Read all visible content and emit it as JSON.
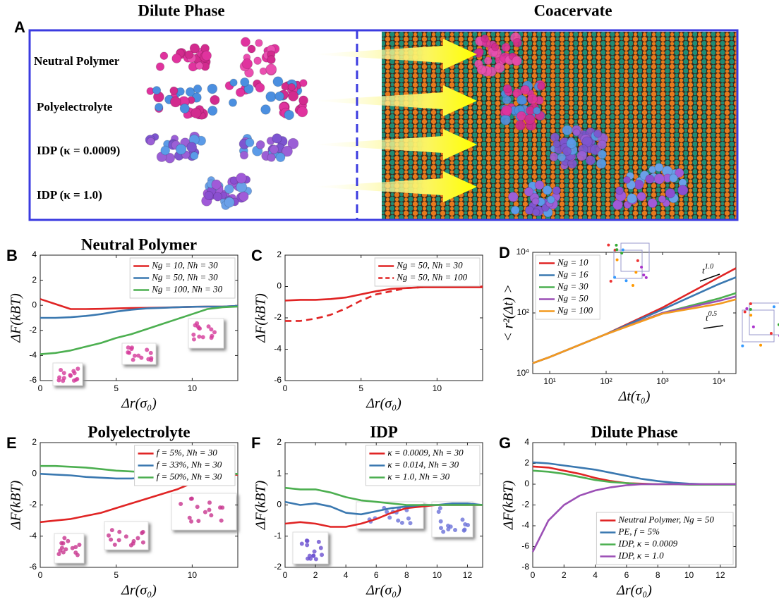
{
  "panel_a": {
    "label": "A",
    "dilute_title": "Dilute Phase",
    "coacervate_title": "Coacervate",
    "rows": [
      "Neutral Polymer",
      "Polyelectrolyte",
      "IDP (κ = 0.0009)",
      "IDP (κ = 1.0)"
    ]
  },
  "chart_data": [
    {
      "type": "line",
      "panel": "B",
      "title": "Neutral Polymer",
      "xlabel": "Δr(σ₀)",
      "ylabel": "ΔF(kBT)",
      "x": [
        0,
        1,
        2,
        3,
        4,
        5,
        6,
        7,
        8,
        9,
        10,
        11,
        12,
        13
      ],
      "xlim": [
        0,
        13
      ],
      "xticks": [
        0,
        5,
        10
      ],
      "ylim": [
        -6,
        4
      ],
      "yticks": [
        -6,
        -4,
        -2,
        0,
        2,
        4
      ],
      "legend": "upper right",
      "series": [
        {
          "name": "Ng = 10, Nh = 30",
          "color": "#e02424",
          "values": [
            0.5,
            0.1,
            -0.3,
            -0.3,
            -0.28,
            -0.25,
            -0.22,
            -0.2,
            -0.18,
            -0.15,
            -0.12,
            -0.1,
            -0.1,
            -0.05
          ]
        },
        {
          "name": "Ng = 50, Nh = 30",
          "color": "#3a78b0",
          "values": [
            -1.0,
            -1.0,
            -0.95,
            -0.85,
            -0.7,
            -0.5,
            -0.35,
            -0.25,
            -0.2,
            -0.15,
            -0.12,
            -0.1,
            -0.1,
            -0.05
          ]
        },
        {
          "name": "Ng = 100, Nh = 30",
          "color": "#4caf50",
          "values": [
            -3.9,
            -3.8,
            -3.6,
            -3.3,
            -3.0,
            -2.6,
            -2.3,
            -1.9,
            -1.5,
            -1.1,
            -0.7,
            -0.3,
            -0.15,
            -0.1
          ]
        }
      ]
    },
    {
      "type": "line",
      "panel": "C",
      "xlabel": "Δr(σ₀)",
      "ylabel": "ΔF(kBT)",
      "x": [
        0,
        1,
        2,
        3,
        4,
        5,
        6,
        7,
        8,
        9,
        10,
        11,
        12,
        13
      ],
      "xlim": [
        0,
        13
      ],
      "xticks": [
        0,
        5,
        10
      ],
      "ylim": [
        -6,
        2
      ],
      "yticks": [
        -6,
        -4,
        -2,
        0,
        2
      ],
      "legend": "upper right",
      "series": [
        {
          "name": "Ng = 50, Nh = 30",
          "color": "#e02424",
          "dash": false,
          "values": [
            -0.9,
            -0.85,
            -0.85,
            -0.8,
            -0.7,
            -0.5,
            -0.3,
            -0.15,
            -0.1,
            -0.05,
            -0.05,
            -0.05,
            -0.05,
            -0.05
          ]
        },
        {
          "name": "Ng = 50, Nh = 100",
          "color": "#e02424",
          "dash": true,
          "values": [
            -2.2,
            -2.2,
            -2.05,
            -1.8,
            -1.4,
            -0.9,
            -0.5,
            -0.3,
            -0.1,
            -0.05,
            0,
            0,
            0,
            0
          ]
        }
      ]
    },
    {
      "type": "line",
      "panel": "D",
      "xlabel": "Δt(τ₀)",
      "ylabel": "< r²(Δt) >",
      "xscale": "log",
      "yscale": "log",
      "x": [
        5,
        10,
        100,
        1000,
        10000,
        20000
      ],
      "xlim": [
        5,
        20000
      ],
      "xticks": [
        {
          "value": 10,
          "label": "10¹"
        },
        {
          "value": 100,
          "label": "10²"
        },
        {
          "value": 1000,
          "label": "10³"
        },
        {
          "value": 10000,
          "label": "10⁴"
        }
      ],
      "ylim": [
        1,
        10000
      ],
      "yticks": [
        {
          "value": 1,
          "label": "10⁰"
        },
        {
          "value": 100,
          "label": "10²"
        },
        {
          "value": 10000,
          "label": "10⁴"
        }
      ],
      "legend": "upper left",
      "annotations": [
        {
          "base": "t",
          "exponent": "1.0"
        },
        {
          "base": "t",
          "exponent": "0.5"
        }
      ],
      "series": [
        {
          "name": "Ng = 10",
          "color": "#e02424",
          "values": [
            2.2,
            3.5,
            20,
            150,
            1500,
            3000
          ]
        },
        {
          "name": "Ng = 16",
          "color": "#3a78b0",
          "values": [
            2.2,
            3.5,
            20,
            130,
            900,
            1500
          ]
        },
        {
          "name": "Ng = 30",
          "color": "#4caf50",
          "values": [
            2.2,
            3.5,
            20,
            100,
            300,
            450
          ]
        },
        {
          "name": "Ng = 50",
          "color": "#9b4fb5",
          "values": [
            2.2,
            3.5,
            20,
            100,
            250,
            350
          ]
        },
        {
          "name": "Ng = 100",
          "color": "#f39a1e",
          "values": [
            2.2,
            3.5,
            20,
            95,
            200,
            280
          ]
        }
      ]
    },
    {
      "type": "line",
      "panel": "E",
      "title": "Polyelectrolyte",
      "xlabel": "Δr(σ₀)",
      "ylabel": "ΔF(kBT)",
      "x": [
        0,
        1,
        2,
        3,
        4,
        5,
        6,
        7,
        8,
        9,
        10,
        11,
        12,
        13
      ],
      "xlim": [
        0,
        13
      ],
      "xticks": [
        0,
        5,
        10
      ],
      "ylim": [
        -6,
        2
      ],
      "yticks": [
        -6,
        -4,
        -2,
        0,
        2
      ],
      "legend": "upper right",
      "series": [
        {
          "name": "f = 5%, Nh = 30",
          "color": "#e02424",
          "values": [
            -3.1,
            -3.0,
            -2.9,
            -2.7,
            -2.5,
            -2.2,
            -1.9,
            -1.6,
            -1.3,
            -1.0,
            -0.6,
            -0.3,
            -0.15,
            -0.05
          ]
        },
        {
          "name": "f = 33%, Nh = 30",
          "color": "#3a78b0",
          "values": [
            0,
            -0.05,
            -0.1,
            -0.2,
            -0.25,
            -0.3,
            -0.3,
            -0.25,
            -0.2,
            -0.15,
            -0.1,
            -0.05,
            0,
            0
          ]
        },
        {
          "name": "f = 50%, Nh = 30",
          "color": "#4caf50",
          "values": [
            0.5,
            0.5,
            0.45,
            0.4,
            0.3,
            0.2,
            0.15,
            0.1,
            0.05,
            0,
            0,
            0,
            0,
            0
          ]
        }
      ]
    },
    {
      "type": "line",
      "panel": "F",
      "title": "IDP",
      "xlabel": "Δr(σ₀)",
      "ylabel": "ΔF(kBT)",
      "x": [
        0,
        1,
        2,
        3,
        4,
        5,
        6,
        7,
        8,
        9,
        10,
        11,
        12,
        13
      ],
      "xlim": [
        0,
        13
      ],
      "xticks": [
        0,
        2,
        4,
        6,
        8,
        10,
        12
      ],
      "ylim": [
        -2,
        2
      ],
      "yticks": [
        -2,
        -1,
        0,
        1,
        2
      ],
      "legend": "upper right",
      "series": [
        {
          "name": "κ = 0.0009, Nh = 30",
          "color": "#e02424",
          "values": [
            -0.6,
            -0.55,
            -0.6,
            -0.7,
            -0.7,
            -0.6,
            -0.45,
            -0.25,
            -0.1,
            -0.05,
            0,
            0,
            0,
            0
          ]
        },
        {
          "name": "κ = 0.014, Nh = 30",
          "color": "#3a78b0",
          "values": [
            0.1,
            0.0,
            0.05,
            -0.05,
            -0.25,
            -0.3,
            -0.2,
            -0.1,
            -0.05,
            0,
            0,
            0.05,
            0.05,
            0
          ]
        },
        {
          "name": "κ = 1.0, Nh = 30",
          "color": "#4caf50",
          "values": [
            0.55,
            0.5,
            0.5,
            0.4,
            0.25,
            0.15,
            0.1,
            0.05,
            0,
            0,
            0,
            0,
            0,
            0
          ]
        }
      ]
    },
    {
      "type": "line",
      "panel": "G",
      "title": "Dilute Phase",
      "xlabel": "Δr(σ₀)",
      "ylabel": "ΔF(kBT)",
      "x": [
        0,
        1,
        2,
        3,
        4,
        5,
        6,
        7,
        8,
        9,
        10,
        11,
        12,
        13
      ],
      "xlim": [
        0,
        13
      ],
      "xticks": [
        0,
        2,
        4,
        6,
        8,
        10,
        12
      ],
      "ylim": [
        -8,
        4
      ],
      "yticks": [
        -8,
        -6,
        -4,
        -2,
        0,
        2,
        4
      ],
      "legend": "lower right",
      "series": [
        {
          "name": "Neutral Polymer, Ng = 50",
          "color": "#e02424",
          "values": [
            1.7,
            1.6,
            1.3,
            1.0,
            0.6,
            0.3,
            0.1,
            0.05,
            0,
            0,
            0,
            0,
            0,
            0
          ]
        },
        {
          "name": "PE, f = 5%",
          "color": "#3a78b0",
          "values": [
            2.1,
            2.0,
            1.8,
            1.6,
            1.4,
            1.1,
            0.8,
            0.5,
            0.3,
            0.15,
            0.05,
            0,
            0,
            0
          ]
        },
        {
          "name": "IDP, κ = 0.0009",
          "color": "#4caf50",
          "values": [
            1.3,
            1.2,
            1.0,
            0.7,
            0.4,
            0.2,
            0.1,
            0,
            0,
            0,
            -0.05,
            -0.05,
            -0.05,
            -0.05
          ]
        },
        {
          "name": "IDP, κ = 1.0",
          "color": "#9b4fb5",
          "values": [
            -6.5,
            -3.5,
            -2.0,
            -1.1,
            -0.6,
            -0.3,
            -0.1,
            0,
            0,
            0,
            0,
            0,
            0,
            0
          ]
        }
      ]
    }
  ]
}
